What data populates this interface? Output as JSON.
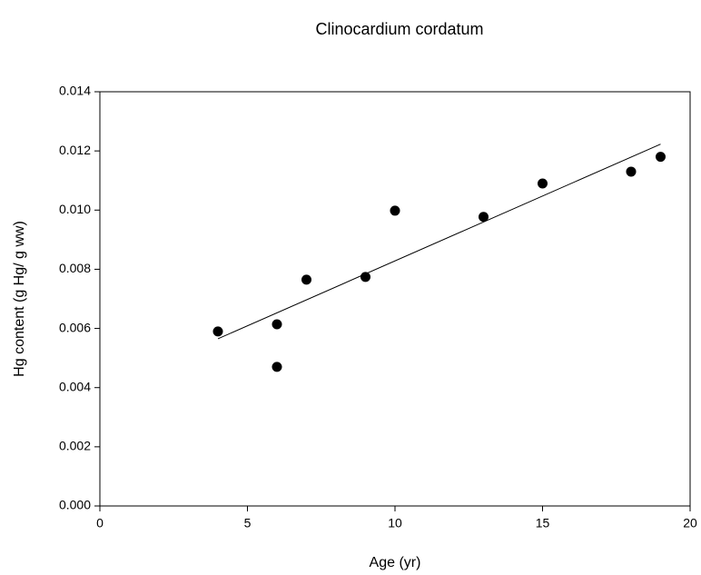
{
  "chart_data": {
    "type": "scatter",
    "title": "Clinocardium cordatum",
    "xlabel": "Age (yr)",
    "ylabel": "Hg content (g Hg/ g ww)",
    "series": [
      {
        "color": "#000000",
        "x": [
          4,
          6,
          6,
          7,
          9,
          10,
          13,
          15,
          18,
          19
        ],
        "values": [
          0.0059,
          0.00614,
          0.0047,
          0.00765,
          0.00774,
          0.00998,
          0.00977,
          0.0109,
          0.0113,
          0.0118
        ]
      }
    ],
    "trendline": {
      "color": "#000000",
      "x": [
        4,
        19
      ],
      "values": [
        0.00565,
        0.01223
      ]
    },
    "xlim": [
      0,
      20
    ],
    "xticks": [
      0,
      5,
      10,
      15,
      20
    ],
    "ylim": [
      0,
      0.014
    ],
    "yticks": [
      {
        "value": 0,
        "label": "0.000"
      },
      {
        "value": 0.002,
        "label": "0.002"
      },
      {
        "value": 0.004,
        "label": "0.004"
      },
      {
        "value": 0.006,
        "label": "0.006"
      },
      {
        "value": 0.008,
        "label": "0.008"
      },
      {
        "value": 0.01,
        "label": "0.010"
      },
      {
        "value": 0.012,
        "label": "0.012"
      },
      {
        "value": 0.014,
        "label": "0.014"
      }
    ],
    "grid": false
  }
}
